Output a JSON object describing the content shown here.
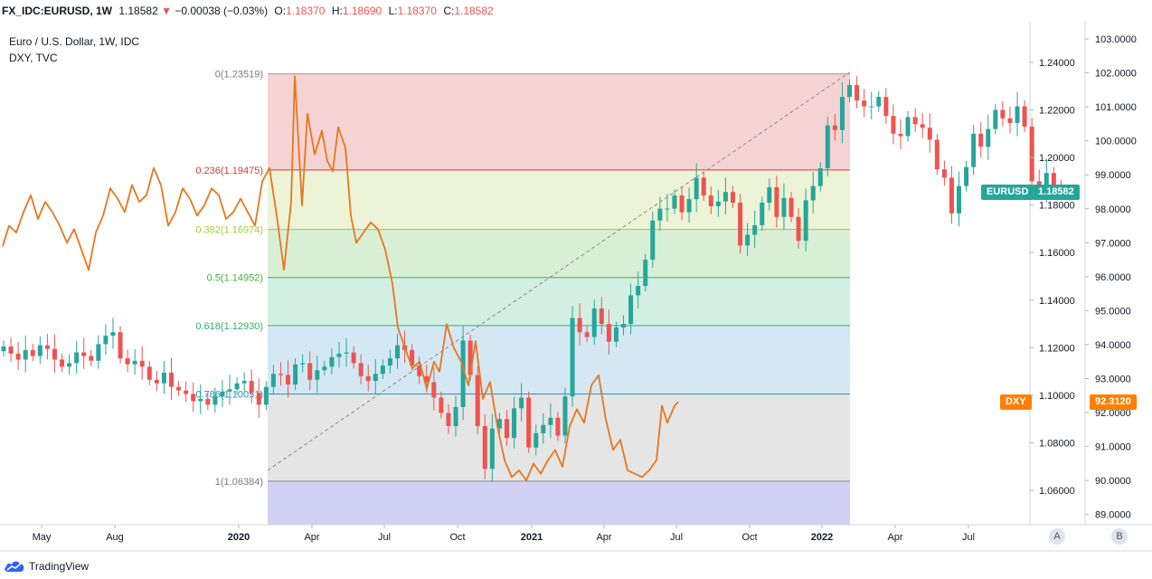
{
  "header": {
    "symbol": "FX_IDC:EURUSD, 1W",
    "last": "1.18582",
    "arrow": "▼",
    "change": "−0.00038 (−0.03%)",
    "o_label": "O:",
    "o_val": "1.18370",
    "h_label": "H:",
    "h_val": "1.18690",
    "l_label": "L:",
    "l_val": "1.18370",
    "c_label": "C:",
    "c_val": "1.18582"
  },
  "legend": {
    "main": "Euro / U.S. Dollar, 1W, IDC",
    "compare": "DXY, TVC"
  },
  "badges": {
    "eurusd_name": "EURUSD",
    "eurusd_value": "1.18582",
    "dxy_name": "DXY",
    "dxy_value": "92.3120"
  },
  "footer": {
    "brand": "TradingView",
    "scale_a": "A",
    "scale_b": "B"
  },
  "colors": {
    "up": "#26a69a",
    "down": "#ef5350",
    "dxy": "#e8761b",
    "badge_eurusd": "#26a69a",
    "badge_dxy": "#ff8000"
  },
  "chart_data": {
    "type": "candlestick+line",
    "title": "Euro / U.S. Dollar, 1W, IDC",
    "x_ticks": [
      "May",
      "Aug",
      "2020",
      "Apr",
      "Jul",
      "Oct",
      "2021",
      "Apr",
      "Jul",
      "Oct",
      "2022",
      "Apr",
      "Jul"
    ],
    "eurusd_axis": {
      "ticks": [
        "1.24000",
        "1.22000",
        "1.20000",
        "1.18000",
        "1.16000",
        "1.14000",
        "1.12000",
        "1.10000",
        "1.08000",
        "1.06000"
      ],
      "range": [
        1.049,
        1.2661
      ]
    },
    "dxy_axis": {
      "ticks": [
        "103.0000",
        "102.0000",
        "101.0000",
        "100.0000",
        "99.0000",
        "98.0000",
        "97.0000",
        "96.0000",
        "95.0000",
        "94.0000",
        "93.0000",
        "92.0000",
        "91.0000",
        "90.0000",
        "89.0000"
      ],
      "range": [
        88.55,
        103.39
      ]
    },
    "fib_levels": [
      {
        "label": "0(1.23519)",
        "price": 1.23519
      },
      {
        "label": "0.236(1.19475)",
        "price": 1.19475
      },
      {
        "label": "0.382(1.16974)",
        "price": 1.16974
      },
      {
        "label": "0.5(1.14952)",
        "price": 1.14952
      },
      {
        "label": "0.618(1.12930)",
        "price": 1.1293
      },
      {
        "label": "0.786(1.10051)",
        "price": 1.10051
      },
      {
        "label": "1(1.06384)",
        "price": 1.06384
      }
    ],
    "eurusd_closes": [
      1.1205,
      1.1175,
      1.115,
      1.119,
      1.1165,
      1.121,
      1.1195,
      1.115,
      1.112,
      1.1135,
      1.118,
      1.1165,
      1.1145,
      1.1215,
      1.125,
      1.1265,
      1.1155,
      1.113,
      1.1145,
      1.112,
      1.1065,
      1.105,
      1.1095,
      1.1035,
      1.102,
      1.1005,
      1.0975,
      1.0985,
      1.096,
      1.0995,
      1.1015,
      1.1025,
      1.105,
      1.106,
      1.101,
      1.096,
      1.1035,
      1.109,
      1.1085,
      1.1045,
      1.113,
      1.1135,
      1.1065,
      1.1105,
      1.112,
      1.116,
      1.1175,
      1.118,
      1.1135,
      1.108,
      1.106,
      1.109,
      1.1125,
      1.1155,
      1.121,
      1.119,
      1.1125,
      1.108,
      1.1055,
      1.099,
      1.0925,
      1.087,
      1.095,
      1.123,
      1.1085,
      1.087,
      1.069,
      1.086,
      1.09,
      1.082,
      1.0945,
      1.099,
      1.078,
      1.084,
      1.0875,
      1.0905,
      1.083,
      1.0995,
      1.1325,
      1.1265,
      1.1245,
      1.1365,
      1.13,
      1.1225,
      1.1285,
      1.13,
      1.142,
      1.146,
      1.157,
      1.1735,
      1.1785,
      1.1785,
      1.184,
      1.177,
      1.1825,
      1.1915,
      1.184,
      1.1795,
      1.1815,
      1.1855,
      1.181,
      1.163,
      1.1675,
      1.1715,
      1.181,
      1.1875,
      1.175,
      1.183,
      1.175,
      1.165,
      1.182,
      1.188,
      1.1955,
      1.2135,
      1.2115,
      1.2255,
      1.2305,
      1.224,
      1.2215,
      1.2215,
      1.2255,
      1.2175,
      1.21,
      1.209,
      1.217,
      1.214,
      1.2125,
      1.2075,
      1.195,
      1.1915,
      1.1765,
      1.188,
      1.196,
      1.21,
      1.2045,
      1.212,
      1.22,
      1.2165,
      1.2145,
      1.2215,
      1.213,
      1.19,
      1.1865,
      1.1935,
      1.187,
      1.1858
    ]
  }
}
